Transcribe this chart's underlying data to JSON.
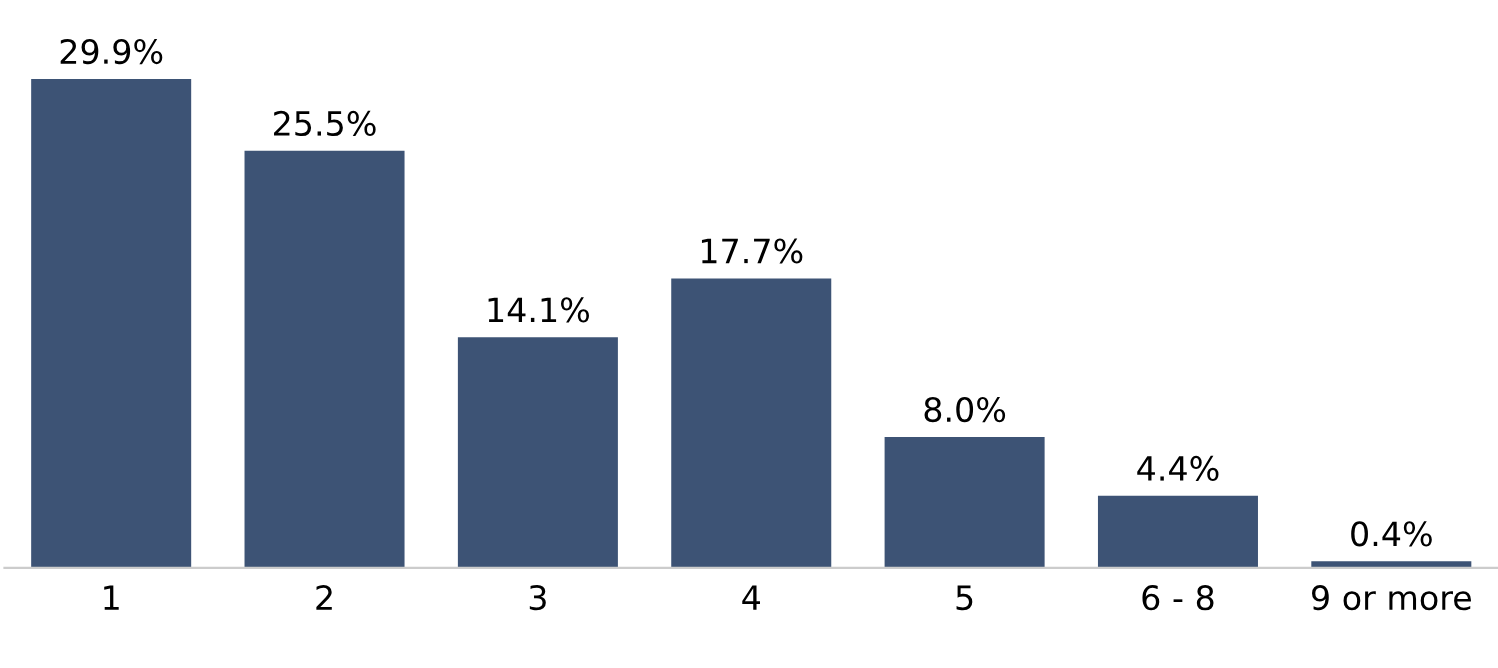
{
  "chart_data": {
    "type": "bar",
    "categories": [
      "1",
      "2",
      "3",
      "4",
      "5",
      "6 - 8",
      "9 or more"
    ],
    "values": [
      29.9,
      25.5,
      14.1,
      17.7,
      8.0,
      4.4,
      0.4
    ],
    "value_labels": [
      "29.9%",
      "25.5%",
      "14.1%",
      "17.7%",
      "8.0%",
      "4.4%",
      "0.4%"
    ],
    "color": "#3d5375",
    "tick_labels": "x"
  }
}
